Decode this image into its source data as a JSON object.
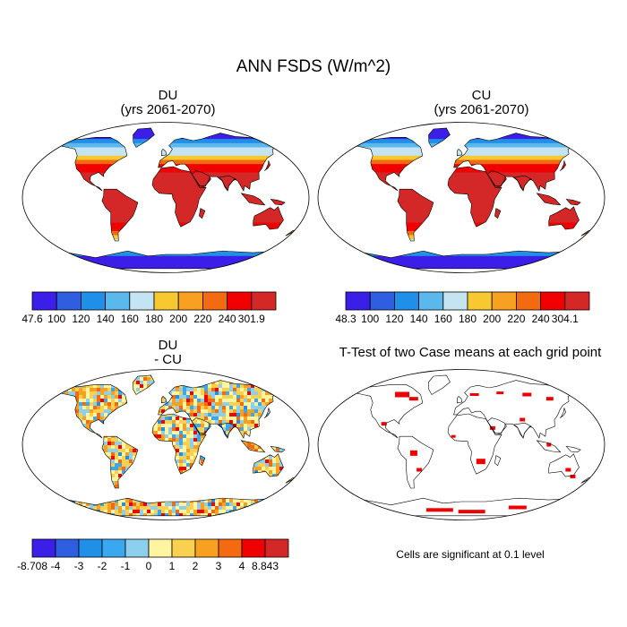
{
  "title": "ANN FSDS (W/m^2)",
  "panels": [
    {
      "id": "du",
      "title_line1": "DU",
      "title_line2": "(yrs 2061-2070)",
      "kind": "abs"
    },
    {
      "id": "cu",
      "title_line1": "CU",
      "title_line2": "(yrs 2061-2070)",
      "kind": "abs"
    },
    {
      "id": "diff",
      "title_line1": "DU",
      "title_line2": "- CU",
      "kind": "diff"
    },
    {
      "id": "ttest",
      "title_line1": "T-Test of two Case means at each grid point",
      "title_line2": "",
      "kind": "sig"
    }
  ],
  "colorbars": [
    {
      "name": "du-colorbar",
      "labels": [
        "47.6",
        "100",
        "120",
        "140",
        "160",
        "180",
        "200",
        "220",
        "240",
        "301.9"
      ],
      "colors": [
        "#3b1fe8",
        "#2f5fe0",
        "#1f8fe8",
        "#5ab8ec",
        "#c4e4f2",
        "#f8c830",
        "#f8a020",
        "#f46a10",
        "#f00000",
        "#d42828"
      ]
    },
    {
      "name": "cu-colorbar",
      "labels": [
        "48.3",
        "100",
        "120",
        "140",
        "160",
        "180",
        "200",
        "220",
        "240",
        "304.1"
      ],
      "colors": [
        "#3b1fe8",
        "#2f5fe0",
        "#1f8fe8",
        "#5ab8ec",
        "#c4e4f2",
        "#f8c830",
        "#f8a020",
        "#f46a10",
        "#f00000",
        "#d42828"
      ]
    },
    {
      "name": "diff-colorbar",
      "labels": [
        "-8.708",
        "-4",
        "-3",
        "-2",
        "-1",
        "0",
        "1",
        "2",
        "3",
        "4",
        "8.843"
      ],
      "colors": [
        "#3b1fe8",
        "#2f5fe0",
        "#1f8fe8",
        "#3aa8f0",
        "#8ccfee",
        "#fff4a0",
        "#fad050",
        "#f8a020",
        "#f46a10",
        "#f00000",
        "#d42828"
      ]
    }
  ],
  "significance_note": "Cells are significant at 0.1 level",
  "colors": {
    "land_abs_warm": "#e4202a",
    "land_abs_cold": "#2f5fe0",
    "sig": "#ee0000",
    "outline": "#000000"
  }
}
